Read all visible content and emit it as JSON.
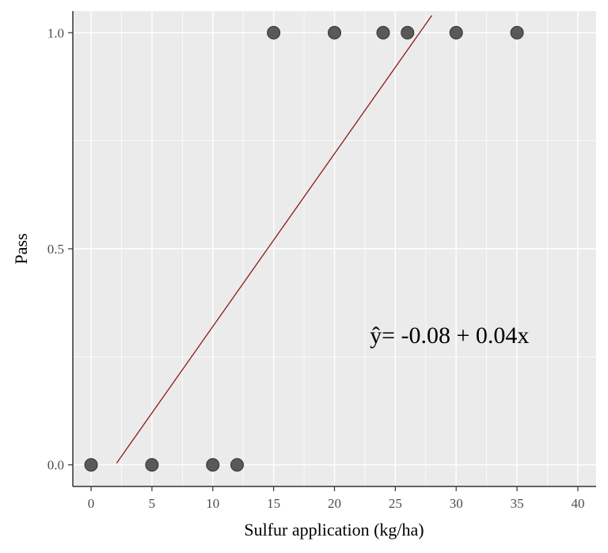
{
  "chart_data": {
    "type": "scatter",
    "title": "",
    "xlabel": "Sulfur application (kg/ha)",
    "ylabel": "Pass",
    "xlim": [
      -1.5,
      41.5
    ],
    "ylim": [
      -0.05,
      1.05
    ],
    "x_ticks": [
      0,
      5,
      10,
      15,
      20,
      25,
      30,
      35,
      40
    ],
    "x_tick_labels": [
      "0",
      "5",
      "10",
      "15",
      "20",
      "25",
      "30",
      "35",
      "40"
    ],
    "y_ticks": [
      0,
      0.5,
      1
    ],
    "y_tick_labels": [
      "0.0",
      "0.5",
      "1.0"
    ],
    "grid": true,
    "points": {
      "x": [
        0,
        5,
        10,
        12,
        15,
        20,
        24,
        26,
        30,
        35
      ],
      "y": [
        0,
        0,
        0,
        0,
        1,
        1,
        1,
        1,
        1,
        1
      ]
    },
    "regression_line": {
      "intercept": -0.08,
      "slope": 0.04,
      "x_range": [
        2.1,
        28
      ]
    },
    "annotation": {
      "text": "ŷ= -0.08 + 0.04x",
      "x": 22.9,
      "y": 0.3
    },
    "colors": {
      "panel": "#ebebeb",
      "grid": "#ffffff",
      "points": "#595959",
      "line": "#8b1a1a"
    }
  }
}
